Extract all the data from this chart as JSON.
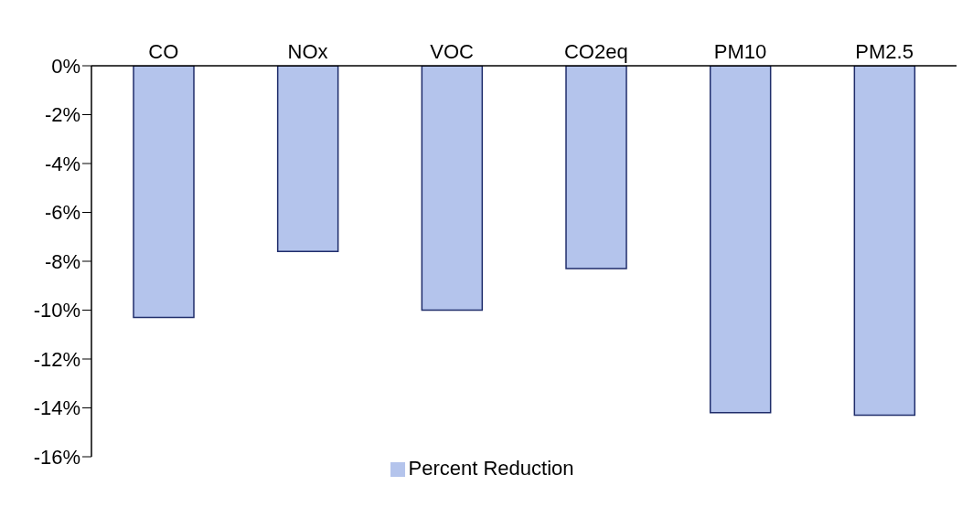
{
  "chart_data": {
    "type": "bar",
    "categories": [
      "CO",
      "NOx",
      "VOC",
      "CO2eq",
      "PM10",
      "PM2.5"
    ],
    "series": [
      {
        "name": "Percent Reduction",
        "color": "#b4c4ec",
        "values": [
          -10.3,
          -7.6,
          -10.0,
          -8.3,
          -14.2,
          -14.3
        ]
      }
    ],
    "ylim": [
      -16,
      0
    ],
    "yticks": [
      {
        "value": 0,
        "label": "0%"
      },
      {
        "value": -2,
        "label": "-2%"
      },
      {
        "value": -4,
        "label": "-4%"
      },
      {
        "value": -6,
        "label": "-6%"
      },
      {
        "value": -8,
        "label": "-8%"
      },
      {
        "value": -10,
        "label": "-10%"
      },
      {
        "value": -12,
        "label": "-12%"
      },
      {
        "value": -14,
        "label": "-14%"
      },
      {
        "value": -16,
        "label": "-16%"
      }
    ],
    "grid": false,
    "legend": "bottom"
  }
}
